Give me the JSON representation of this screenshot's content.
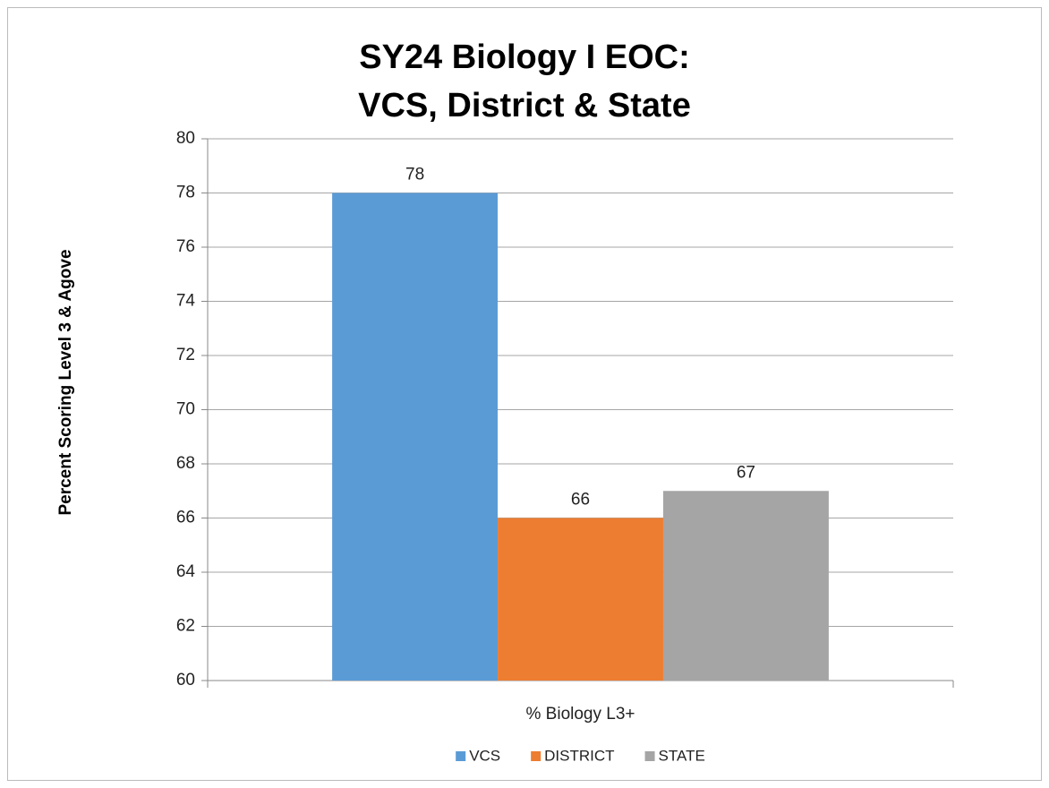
{
  "chart_data": {
    "type": "bar",
    "title": [
      "SY24 Biology I EOC:",
      "VCS, District & State"
    ],
    "y_label": "Percent Scoring Level 3 & Agove",
    "categories": [
      "% Biology L3+"
    ],
    "series": [
      {
        "name": "VCS",
        "color": "#5b9bd5",
        "values": [
          78
        ]
      },
      {
        "name": "DISTRICT",
        "color": "#ed7d31",
        "values": [
          66
        ]
      },
      {
        "name": "STATE",
        "color": "#a5a5a5",
        "values": [
          67
        ]
      }
    ],
    "ylim": [
      60,
      80
    ],
    "yticks": [
      60,
      62,
      64,
      66,
      68,
      70,
      72,
      74,
      76,
      78,
      80
    ],
    "grid": true,
    "legend": "bottom"
  }
}
